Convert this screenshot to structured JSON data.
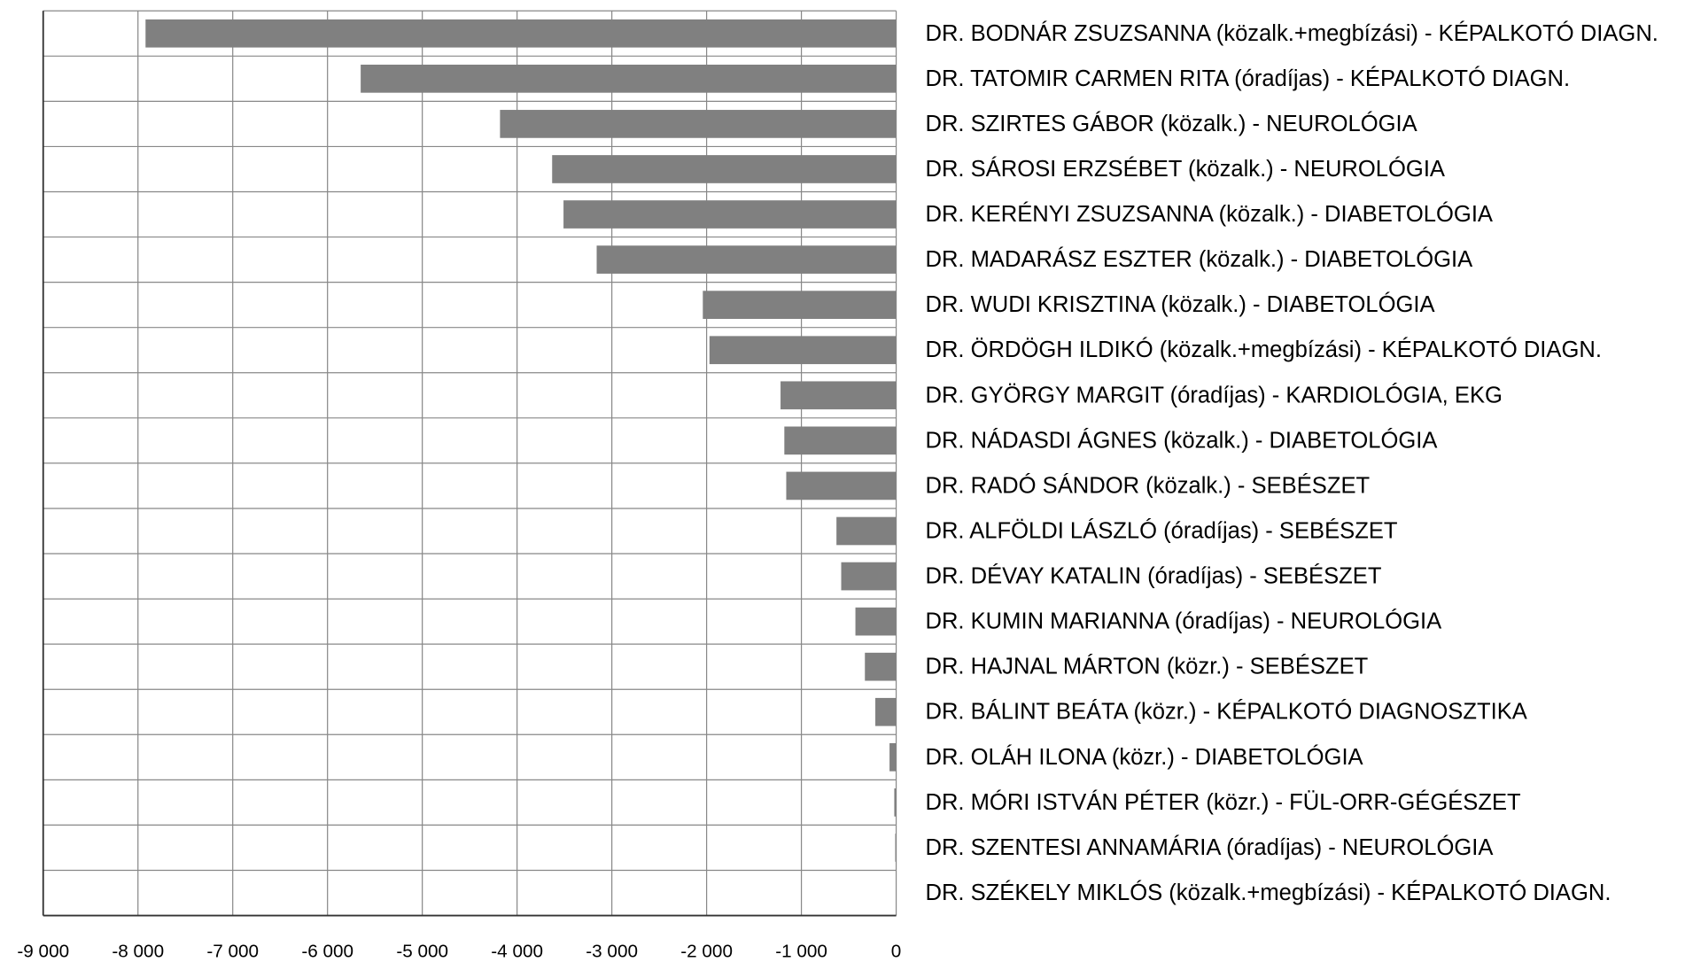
{
  "chart_data": {
    "type": "bar",
    "orientation": "horizontal",
    "categories": [
      "DR. BODNÁR ZSUZSANNA (közalk.+megbízási) - KÉPALKOTÓ DIAGN.",
      "DR. TATOMIR CARMEN RITA (óradíjas) - KÉPALKOTÓ DIAGN.",
      "DR. SZIRTES GÁBOR (közalk.) - NEUROLÓGIA",
      "DR. SÁROSI ERZSÉBET (közalk.) - NEUROLÓGIA",
      "DR. KERÉNYI ZSUZSANNA (közalk.) - DIABETOLÓGIA",
      "DR. MADARÁSZ ESZTER (közalk.) - DIABETOLÓGIA",
      "DR. WUDI KRISZTINA (közalk.) - DIABETOLÓGIA",
      "DR. ÖRDÖGH ILDIKÓ (közalk.+megbízási) - KÉPALKOTÓ DIAGN.",
      "DR. GYÖRGY MARGIT (óradíjas) - KARDIOLÓGIA, EKG",
      "DR. NÁDASDI ÁGNES (közalk.) - DIABETOLÓGIA",
      "DR. RADÓ SÁNDOR (közalk.) - SEBÉSZET",
      "DR. ALFÖLDI LÁSZLÓ (óradíjas) - SEBÉSZET",
      "DR. DÉVAY KATALIN (óradíjas) - SEBÉSZET",
      "DR. KUMIN MARIANNA (óradíjas) - NEUROLÓGIA",
      "DR. HAJNAL MÁRTON (közr.) - SEBÉSZET",
      "DR. BÁLINT BEÁTA (közr.) - KÉPALKOTÓ DIAGNOSZTIKA",
      "DR. OLÁH ILONA (közr.) - DIABETOLÓGIA",
      "DR. MÓRI ISTVÁN PÉTER (közr.) - FÜL-ORR-GÉGÉSZET",
      "DR. SZENTESI ANNAMÁRIA (óradíjas) - NEUROLÓGIA",
      "DR. SZÉKELY MIKLÓS (közalk.+megbízási) - KÉPALKOTÓ DIAGN."
    ],
    "values": [
      -7920,
      -5650,
      -4180,
      -3630,
      -3510,
      -3160,
      -2040,
      -1970,
      -1220,
      -1180,
      -1160,
      -630,
      -580,
      -430,
      -330,
      -220,
      -70,
      -20,
      -10,
      0
    ],
    "color": "#808080",
    "xlim": [
      -9000,
      0
    ],
    "xticks": [
      {
        "value": -9000,
        "label": "-9 000"
      },
      {
        "value": -8000,
        "label": "-8 000"
      },
      {
        "value": -7000,
        "label": "-7 000"
      },
      {
        "value": -6000,
        "label": "-6 000"
      },
      {
        "value": -5000,
        "label": "-5 000"
      },
      {
        "value": -4000,
        "label": "-4 000"
      },
      {
        "value": -3000,
        "label": "-3 000"
      },
      {
        "value": -2000,
        "label": "-2 000"
      },
      {
        "value": -1000,
        "label": "-1 000"
      },
      0
    ],
    "grid": true
  }
}
